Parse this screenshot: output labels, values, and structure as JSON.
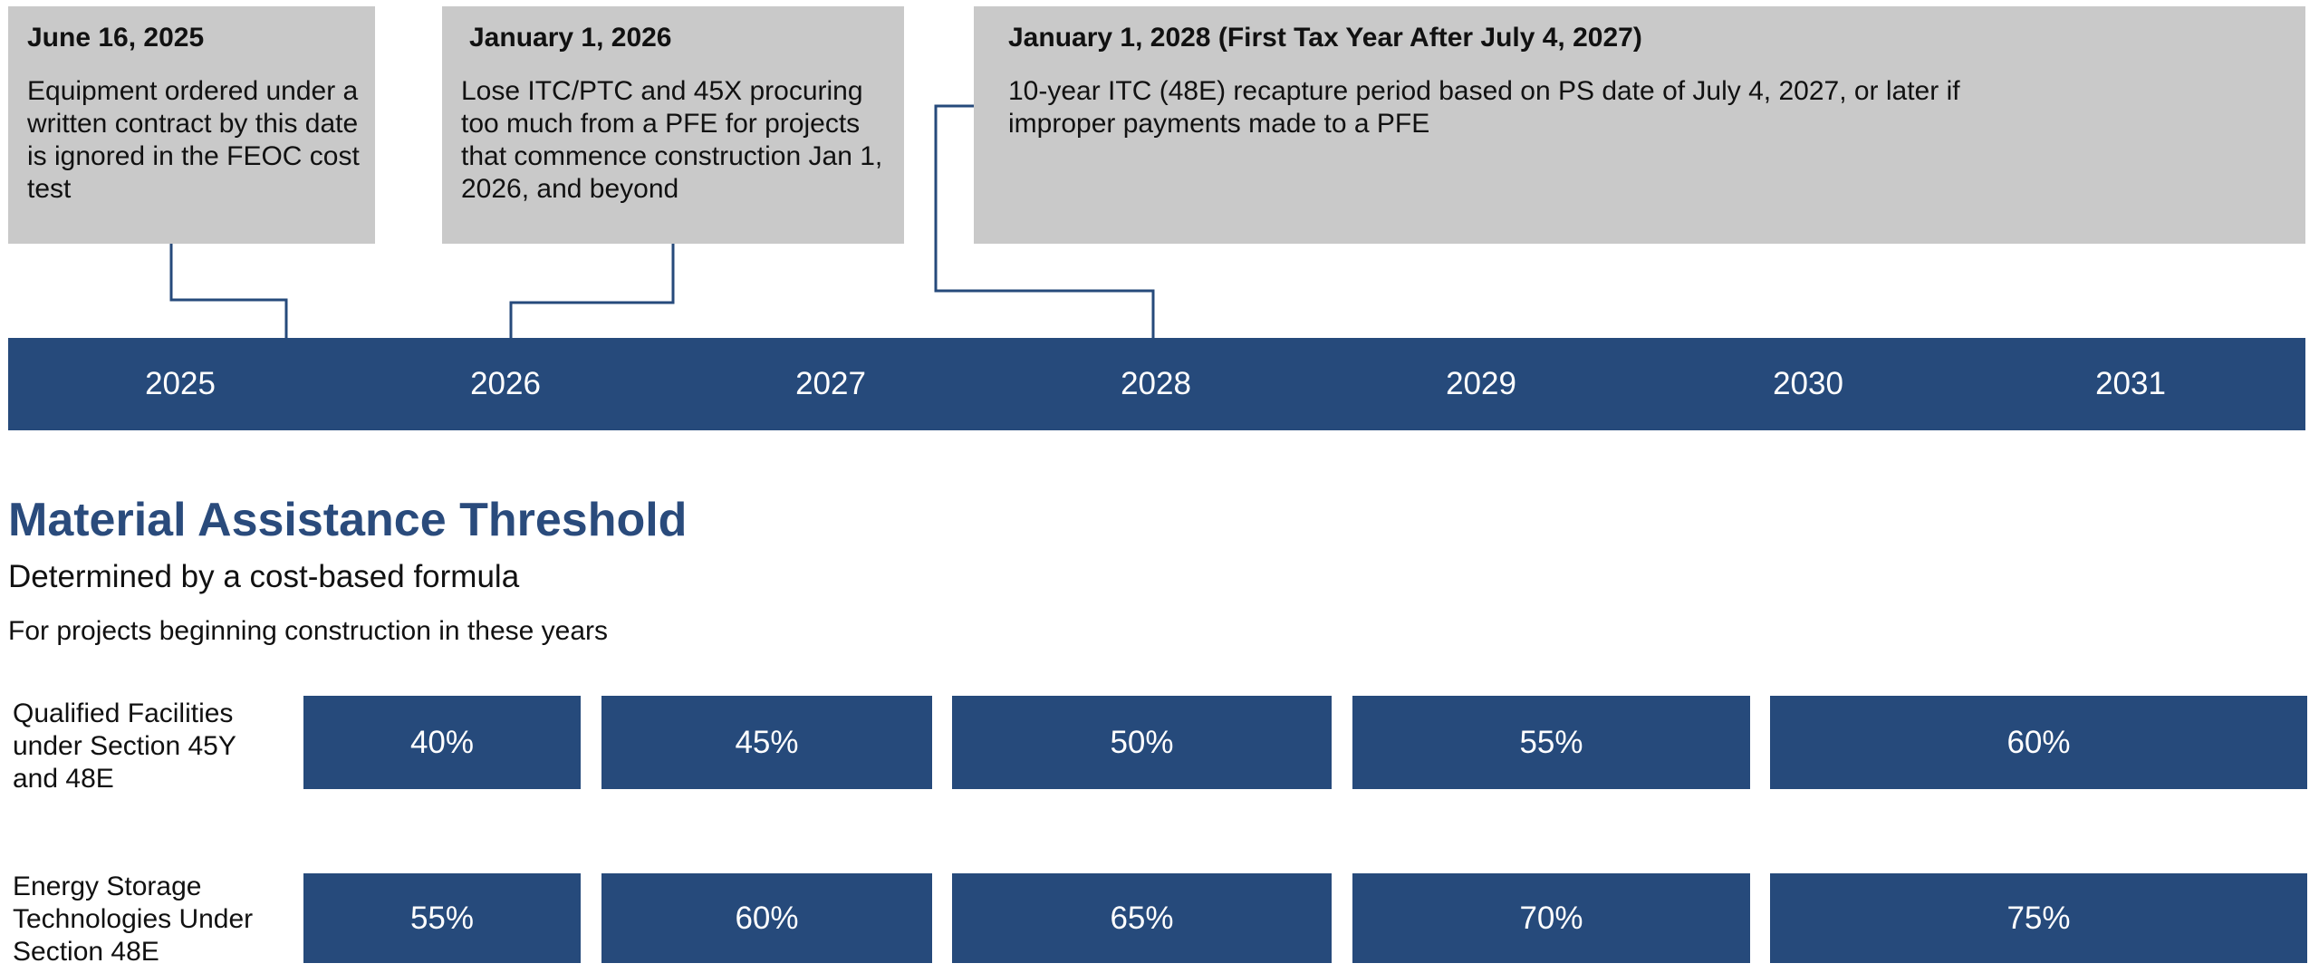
{
  "callouts": [
    {
      "date": "June 16, 2025",
      "text": "Equipment ordered under a written contract by this date is ignored in the FEOC cost test"
    },
    {
      "date": "January 1, 2026",
      "text": "Lose ITC/PTC and 45X procuring too much from a PFE for projects that commence construction Jan 1, 2026, and beyond"
    },
    {
      "date": "January 1, 2028 (First Tax Year After July 4, 2027)",
      "text": "10-year ITC (48E) recapture period based on PS date of July 4, 2027, or later if improper payments made to a PFE"
    }
  ],
  "timeline": {
    "years": [
      "2025",
      "2026",
      "2027",
      "2028",
      "2029",
      "2030",
      "2031"
    ],
    "bar_color": "#264a7b"
  },
  "section": {
    "title": "Material Assistance Threshold",
    "subtitle": "Determined by a cost-based formula",
    "note": "For projects beginning construction in these years"
  },
  "table": {
    "rows": [
      {
        "label": "Qualified Facilities under Section 45Y and 48E",
        "values": [
          "40%",
          "45%",
          "50%",
          "55%",
          "60%"
        ]
      },
      {
        "label": "Energy Storage Technologies Under Section 48E",
        "values": [
          "55%",
          "60%",
          "65%",
          "70%",
          "75%"
        ]
      }
    ]
  },
  "colors": {
    "accent": "#264a7b",
    "title": "#2a4b7c",
    "callout_bg": "#c9c9c9"
  }
}
